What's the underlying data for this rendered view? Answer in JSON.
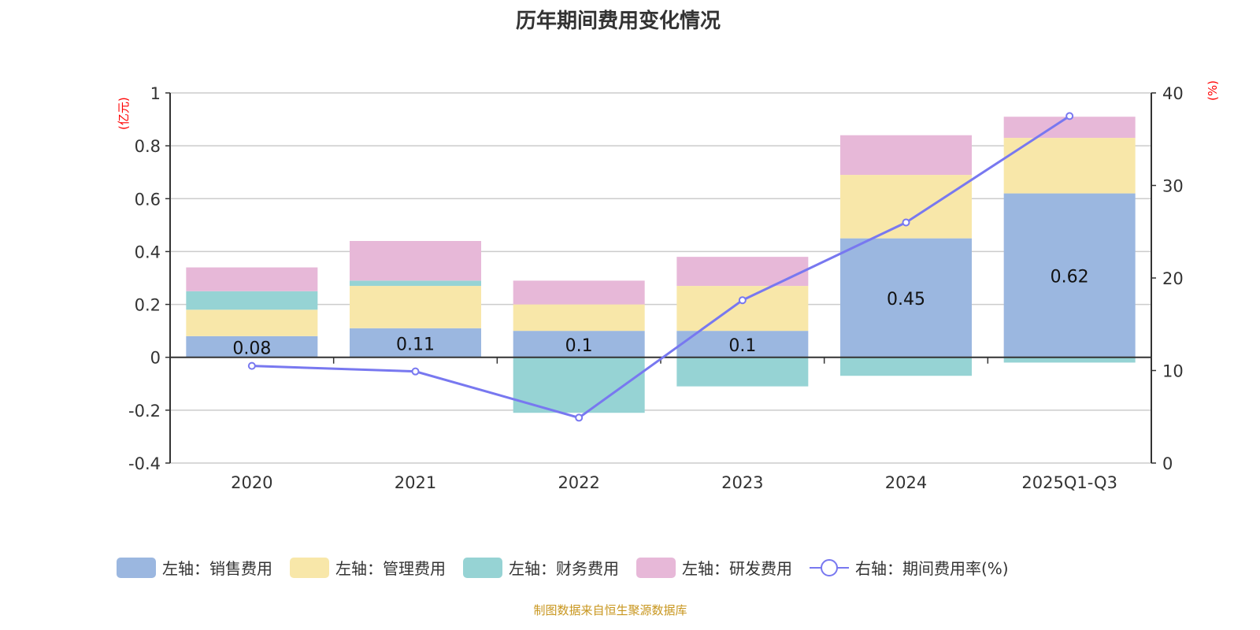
{
  "chart_data": {
    "type": "bar",
    "title": "历年期间费用变化情况",
    "categories": [
      "2020",
      "2021",
      "2022",
      "2023",
      "2024",
      "2025Q1-Q3"
    ],
    "y_left": {
      "label": "(亿元)",
      "range": [
        -0.4,
        1
      ],
      "ticks": [
        "-0.4",
        "-0.2",
        "0",
        "0.2",
        "0.4",
        "0.6",
        "0.8",
        "1"
      ]
    },
    "y_right": {
      "label": "(%)",
      "range": [
        0,
        40
      ],
      "ticks": [
        "0",
        "10",
        "20",
        "30",
        "40"
      ]
    },
    "grid": true,
    "stacked": true,
    "legend_position": "bottom",
    "series": [
      {
        "name": "左轴：销售费用",
        "axis": "left",
        "type": "bar",
        "color": "#9bb7e0",
        "values": [
          0.08,
          0.11,
          0.1,
          0.1,
          0.45,
          0.62
        ],
        "labels": [
          "0.08",
          "0.11",
          "0.1",
          "0.1",
          "0.45",
          "0.62"
        ]
      },
      {
        "name": "左轴：管理费用",
        "axis": "left",
        "type": "bar",
        "color": "#f8e7a9",
        "values": [
          0.1,
          0.16,
          0.1,
          0.17,
          0.24,
          0.21
        ]
      },
      {
        "name": "左轴：财务费用",
        "axis": "left",
        "type": "bar",
        "color": "#96d3d4",
        "values": [
          0.07,
          0.02,
          -0.21,
          -0.11,
          -0.07,
          -0.02
        ]
      },
      {
        "name": "左轴：研发费用",
        "axis": "left",
        "type": "bar",
        "color": "#e7b8d8",
        "values": [
          0.09,
          0.15,
          0.09,
          0.11,
          0.15,
          0.08
        ]
      },
      {
        "name": "右轴：期间费用率(%)",
        "axis": "right",
        "type": "line",
        "color": "#7878f0",
        "values": [
          10.5,
          9.9,
          4.9,
          17.6,
          26.0,
          37.5
        ]
      }
    ]
  },
  "source": "制图数据来自恒生聚源数据库"
}
